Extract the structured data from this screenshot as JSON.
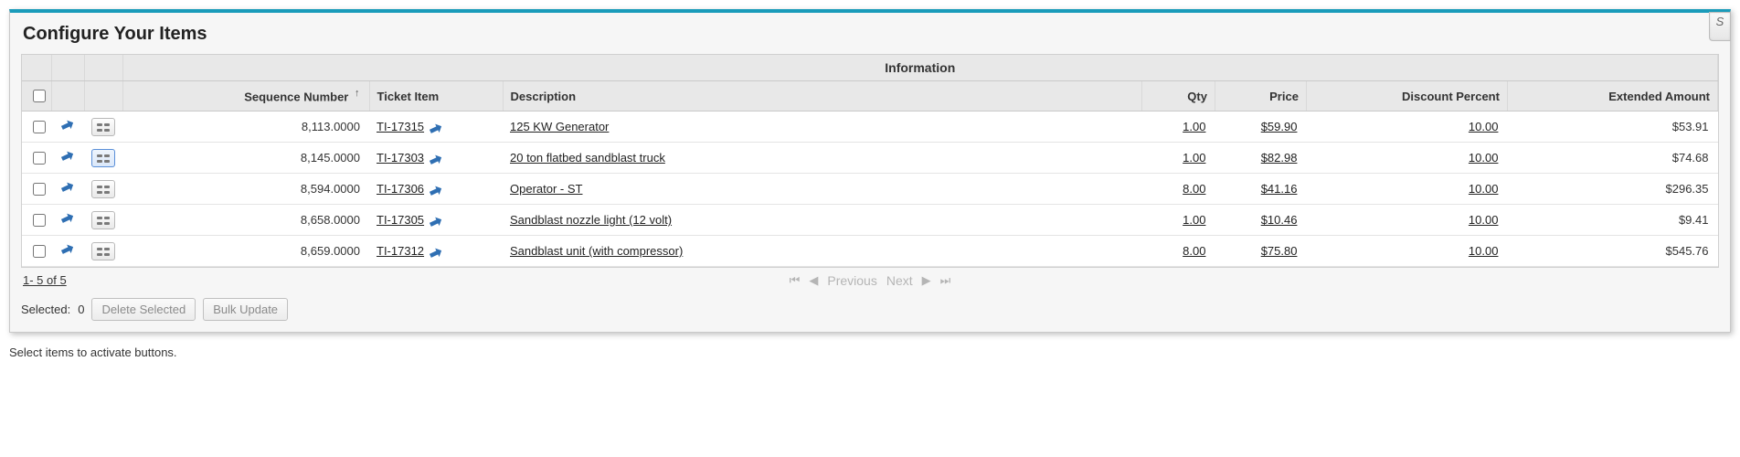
{
  "title": "Configure Your Items",
  "groupHeader": "Information",
  "columns": {
    "sequence": "Sequence Number",
    "ticket": "Ticket Item",
    "description": "Description",
    "qty": "Qty",
    "price": "Price",
    "discount": "Discount Percent",
    "extended": "Extended Amount"
  },
  "sortIndicator": "↑",
  "rows": [
    {
      "seq": "8,113.0000",
      "ticket": "TI-17315",
      "desc": "125 KW Generator",
      "qty": "1.00",
      "price": "$59.90",
      "disc": "10.00",
      "ext": "$53.91",
      "expanded": false
    },
    {
      "seq": "8,145.0000",
      "ticket": "TI-17303",
      "desc": "20 ton flatbed sandblast truck",
      "qty": "1.00",
      "price": "$82.98",
      "disc": "10.00",
      "ext": "$74.68",
      "expanded": true
    },
    {
      "seq": "8,594.0000",
      "ticket": "TI-17306",
      "desc": "Operator - ST",
      "qty": "8.00",
      "price": "$41.16",
      "disc": "10.00",
      "ext": "$296.35",
      "expanded": false
    },
    {
      "seq": "8,658.0000",
      "ticket": "TI-17305",
      "desc": "Sandblast nozzle light (12 volt)",
      "qty": "1.00",
      "price": "$10.46",
      "disc": "10.00",
      "ext": "$9.41",
      "expanded": false
    },
    {
      "seq": "8,659.0000",
      "ticket": "TI-17312",
      "desc": "Sandblast unit (with compressor)",
      "qty": "8.00",
      "price": "$75.80",
      "disc": "10.00",
      "ext": "$545.76",
      "expanded": false
    }
  ],
  "pager": {
    "range": "1- 5  of  5",
    "prev": "Previous",
    "next": "Next"
  },
  "selection": {
    "label": "Selected:",
    "count": "0",
    "deleteBtn": "Delete Selected",
    "bulkBtn": "Bulk Update"
  },
  "hint": "Select items to activate buttons.",
  "tabStub": "S",
  "colors": {
    "accent": "#1a9bba",
    "arrow": "#2f6fb3"
  }
}
